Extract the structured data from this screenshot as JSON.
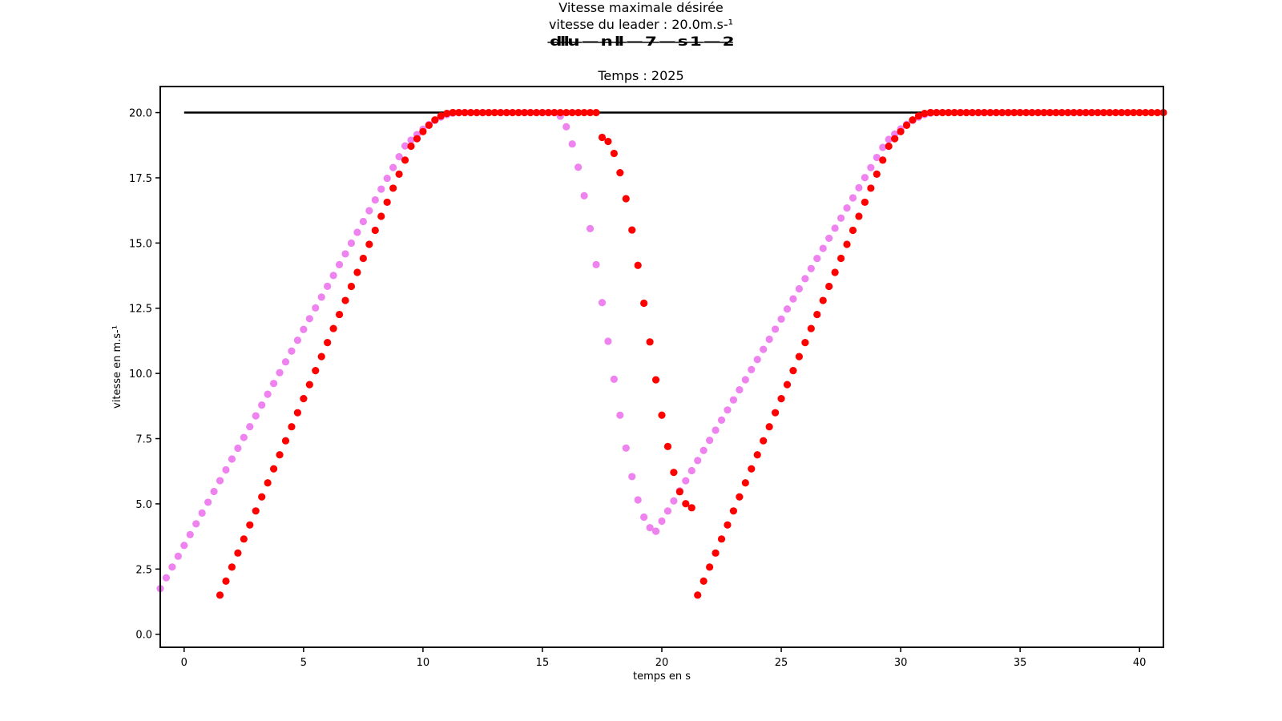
{
  "titles": {
    "main": "Vitesse maximale désirée",
    "leader_speed": "vitesse du leader : 20.0m.s-¹",
    "overlapped_info": "d̶l̶l̶u̶ ̶—̶ ̶n̶ ̶l̶l̶ ̶—̶ ̶7̶ ̶—̶ ̶s̶ ̶1̶ ̶—̶ ̶2̶",
    "time": "Temps : 2025"
  },
  "chart_data": {
    "type": "scatter",
    "xlabel": "temps en s",
    "ylabel": "vitesse en m.s-¹",
    "xlim": [
      -1,
      41
    ],
    "ylim": [
      -0.5,
      21.0
    ],
    "xticks": [
      0,
      5,
      10,
      15,
      20,
      25,
      30,
      35,
      40
    ],
    "yticks": [
      0.0,
      2.5,
      5.0,
      7.5,
      10.0,
      12.5,
      15.0,
      17.5,
      20.0
    ],
    "ytick_labels": [
      "0.0",
      "2.5",
      "5.0",
      "7.5",
      "10.0",
      "12.5",
      "15.0",
      "17.5",
      "20.0"
    ],
    "grid": false,
    "reference_line": {
      "y": 20.0,
      "x_start": 0,
      "x_end": 41,
      "color": "#000000"
    },
    "series": [
      {
        "color": "#ee82ee",
        "segments": [
          {
            "shape": "rise",
            "x0": -1.0,
            "x1": 11.5,
            "y0": 1.75,
            "y1": 20.0,
            "step": 0.25
          },
          {
            "shape": "flat",
            "x0": 11.5,
            "x1": 15.5,
            "y": 20.0,
            "step": 0.25
          },
          {
            "shape": "dip",
            "x0": 15.5,
            "x1": 19.75,
            "y0": 20.0,
            "y1": 3.95,
            "step": 0.25
          },
          {
            "shape": "rise",
            "x0": 19.75,
            "x1": 31.5,
            "y0": 3.95,
            "y1": 20.0,
            "step": 0.25
          },
          {
            "shape": "flat",
            "x0": 31.5,
            "x1": 38.0,
            "y": 20.0,
            "step": 0.25
          }
        ]
      },
      {
        "color": "#ff0000",
        "segments": [
          {
            "shape": "rise",
            "x0": 1.5,
            "x1": 11.25,
            "y0": 1.5,
            "y1": 20.0,
            "step": 0.25
          },
          {
            "shape": "flat",
            "x0": 11.25,
            "x1": 17.25,
            "y": 20.0,
            "step": 0.25
          },
          {
            "shape": "dip",
            "x0": 17.5,
            "x1": 21.25,
            "y0": 19.05,
            "y1": 4.85,
            "step": 0.25
          },
          {
            "shape": "rise",
            "x0": 21.5,
            "x1": 31.25,
            "y0": 1.5,
            "y1": 20.0,
            "step": 0.25
          },
          {
            "shape": "flat",
            "x0": 31.25,
            "x1": 41.0,
            "y": 20.0,
            "step": 0.25
          }
        ]
      }
    ]
  }
}
